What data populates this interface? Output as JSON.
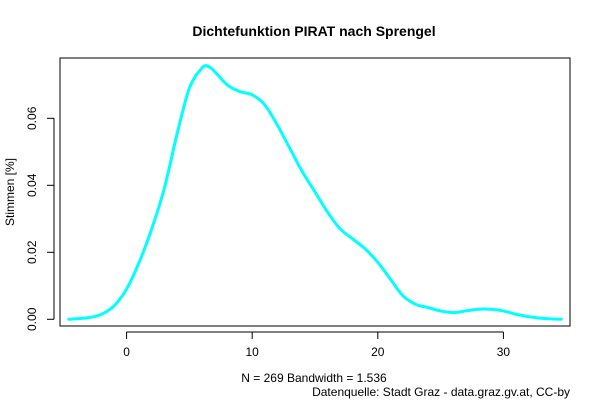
{
  "chart_data": {
    "type": "line",
    "title": "Dichtefunktion PIRAT nach Sprengel",
    "xlabel": "N = 269   Bandwidth = 1.536",
    "ylabel": "Stimmen [%]",
    "source": "Datenquelle: Stadt Graz - data.graz.gv.at, CC-by",
    "xlim": [
      -5.3,
      35.3
    ],
    "ylim": [
      -0.002,
      0.078
    ],
    "x_ticks": [
      0,
      10,
      20,
      30
    ],
    "x_tick_labels": [
      "0",
      "10",
      "20",
      "30"
    ],
    "y_ticks": [
      0.0,
      0.02,
      0.04,
      0.06
    ],
    "y_tick_labels": [
      "0.00",
      "0.02",
      "0.04",
      "0.06"
    ],
    "grid": false,
    "series": [
      {
        "color": "#00FFFF",
        "x": [
          -4.6,
          -3,
          -2,
          -1,
          0,
          1,
          2,
          3,
          4,
          5,
          6,
          6.5,
          7,
          8,
          9,
          10,
          11,
          12,
          13,
          14,
          15,
          16,
          17,
          18,
          19,
          20,
          21,
          22,
          23,
          24,
          25,
          26,
          27,
          28,
          29,
          30,
          31,
          32,
          33,
          34,
          34.6
        ],
        "y": [
          0.0,
          0.0005,
          0.0015,
          0.004,
          0.009,
          0.017,
          0.027,
          0.039,
          0.055,
          0.069,
          0.075,
          0.0755,
          0.074,
          0.07,
          0.068,
          0.067,
          0.064,
          0.058,
          0.051,
          0.044,
          0.038,
          0.032,
          0.027,
          0.024,
          0.021,
          0.017,
          0.012,
          0.007,
          0.0045,
          0.0035,
          0.0025,
          0.002,
          0.0025,
          0.003,
          0.003,
          0.0025,
          0.0015,
          0.0008,
          0.0003,
          0.0001,
          0.0
        ]
      }
    ]
  }
}
